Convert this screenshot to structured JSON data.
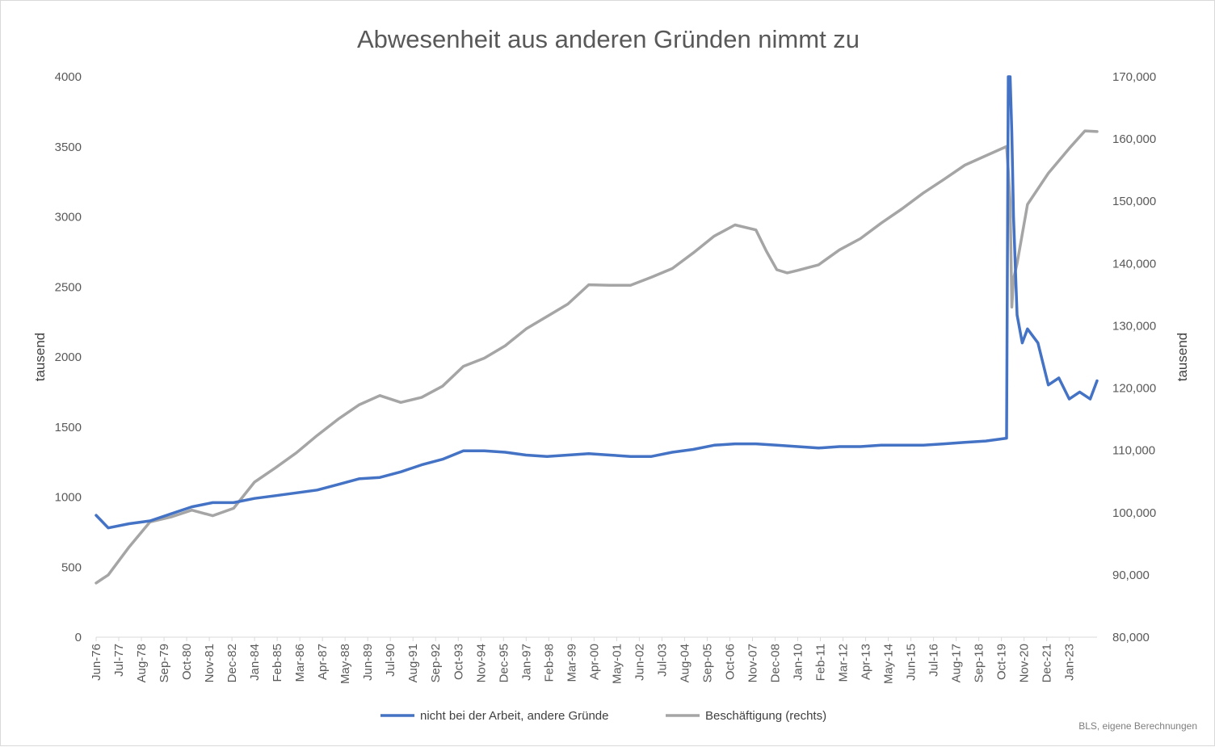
{
  "chart_data": {
    "type": "line",
    "title": "Abwesenheit aus anderen Gründen nimmt zu",
    "ylabel_left": "tausend",
    "ylabel_right": "tausend",
    "ylim_left": [
      0,
      4000
    ],
    "ylim_right": [
      80000,
      170000
    ],
    "yticks_left": [
      "0",
      "500",
      "1000",
      "1500",
      "2000",
      "2500",
      "3000",
      "3500",
      "4000"
    ],
    "yticks_right": [
      "80,000",
      "90,000",
      "100,000",
      "110,000",
      "120,000",
      "130,000",
      "140,000",
      "150,000",
      "160,000",
      "170,000"
    ],
    "x_tick_labels": [
      "Jun-76",
      "Jul-77",
      "Aug-78",
      "Sep-79",
      "Oct-80",
      "Nov-81",
      "Dec-82",
      "Jan-84",
      "Feb-85",
      "Mar-86",
      "Apr-87",
      "May-88",
      "Jun-89",
      "Jul-90",
      "Aug-91",
      "Sep-92",
      "Oct-93",
      "Nov-94",
      "Dec-95",
      "Jan-97",
      "Feb-98",
      "Mar-99",
      "Apr-00",
      "May-01",
      "Jun-02",
      "Jul-03",
      "Aug-04",
      "Sep-05",
      "Oct-06",
      "Nov-07",
      "Dec-08",
      "Jan-10",
      "Feb-11",
      "Mar-12",
      "Apr-13",
      "May-14",
      "Jun-15",
      "Jul-16",
      "Aug-17",
      "Sep-18",
      "Oct-19",
      "Nov-20",
      "Dec-21",
      "Jan-23"
    ],
    "grid": false,
    "legend_position": "bottom",
    "series": [
      {
        "name": "nicht bei der Arbeit, andere Gründe",
        "axis": "left",
        "color": "#4472c4",
        "x": [
          1976.42,
          1977.0,
          1978.0,
          1979.0,
          1980.0,
          1981.0,
          1982.0,
          1983.0,
          1984.0,
          1985.0,
          1986.0,
          1987.0,
          1988.0,
          1989.0,
          1990.0,
          1991.0,
          1992.0,
          1993.0,
          1994.0,
          1995.0,
          1996.0,
          1997.0,
          1998.0,
          1999.0,
          2000.0,
          2001.0,
          2002.0,
          2003.0,
          2004.0,
          2005.0,
          2006.0,
          2007.0,
          2008.0,
          2009.0,
          2010.0,
          2011.0,
          2012.0,
          2013.0,
          2014.0,
          2015.0,
          2016.0,
          2017.0,
          2018.0,
          2019.0,
          2020.0,
          2020.08,
          2020.17,
          2020.25,
          2020.33,
          2020.5,
          2020.75,
          2021.0,
          2021.5,
          2022.0,
          2022.5,
          2023.0,
          2023.5,
          2024.0,
          2024.33
        ],
        "values": [
          870,
          780,
          810,
          830,
          880,
          930,
          960,
          960,
          990,
          1010,
          1030,
          1050,
          1090,
          1130,
          1140,
          1180,
          1230,
          1270,
          1330,
          1330,
          1320,
          1300,
          1290,
          1300,
          1310,
          1300,
          1290,
          1290,
          1320,
          1340,
          1370,
          1380,
          1380,
          1370,
          1360,
          1350,
          1360,
          1360,
          1370,
          1370,
          1370,
          1380,
          1390,
          1400,
          1420,
          4000,
          4000,
          3600,
          3000,
          2300,
          2100,
          2200,
          2100,
          1800,
          1850,
          1700,
          1750,
          1700,
          1830
        ]
      },
      {
        "name": "Beschäftigung (rechts)",
        "axis": "right",
        "color": "#a5a5a5",
        "x": [
          1976.42,
          1977.0,
          1978.0,
          1979.0,
          1980.0,
          1981.0,
          1982.0,
          1983.0,
          1984.0,
          1985.0,
          1986.0,
          1987.0,
          1988.0,
          1989.0,
          1990.0,
          1991.0,
          1992.0,
          1993.0,
          1994.0,
          1995.0,
          1996.0,
          1997.0,
          1998.0,
          1999.0,
          2000.0,
          2001.0,
          2002.0,
          2003.0,
          2004.0,
          2005.0,
          2006.0,
          2007.0,
          2008.0,
          2008.5,
          2009.0,
          2009.5,
          2010.0,
          2011.0,
          2012.0,
          2013.0,
          2014.0,
          2015.0,
          2016.0,
          2017.0,
          2018.0,
          2019.0,
          2020.0,
          2020.08,
          2020.17,
          2020.25,
          2020.33,
          2020.5,
          2021.0,
          2022.0,
          2023.0,
          2023.75,
          2024.33
        ],
        "values": [
          88700,
          90000,
          94500,
          98500,
          99300,
          100400,
          99500,
          100700,
          104900,
          107200,
          109600,
          112400,
          115000,
          117300,
          118800,
          117700,
          118500,
          120300,
          123500,
          124800,
          126800,
          129500,
          131500,
          133500,
          136600,
          136500,
          136500,
          137800,
          139200,
          141700,
          144400,
          146200,
          145400,
          142000,
          139000,
          138500,
          138900,
          139800,
          142200,
          144000,
          146500,
          148800,
          151300,
          153500,
          155800,
          157300,
          158800,
          155000,
          150000,
          133000,
          137500,
          140000,
          149500,
          154500,
          158500,
          161300,
          161200
        ]
      }
    ]
  },
  "legend": {
    "items": [
      "nicht bei der Arbeit, andere Gründe",
      "Beschäftigung (rechts)"
    ]
  },
  "source": "BLS, eigene Berechnungen"
}
